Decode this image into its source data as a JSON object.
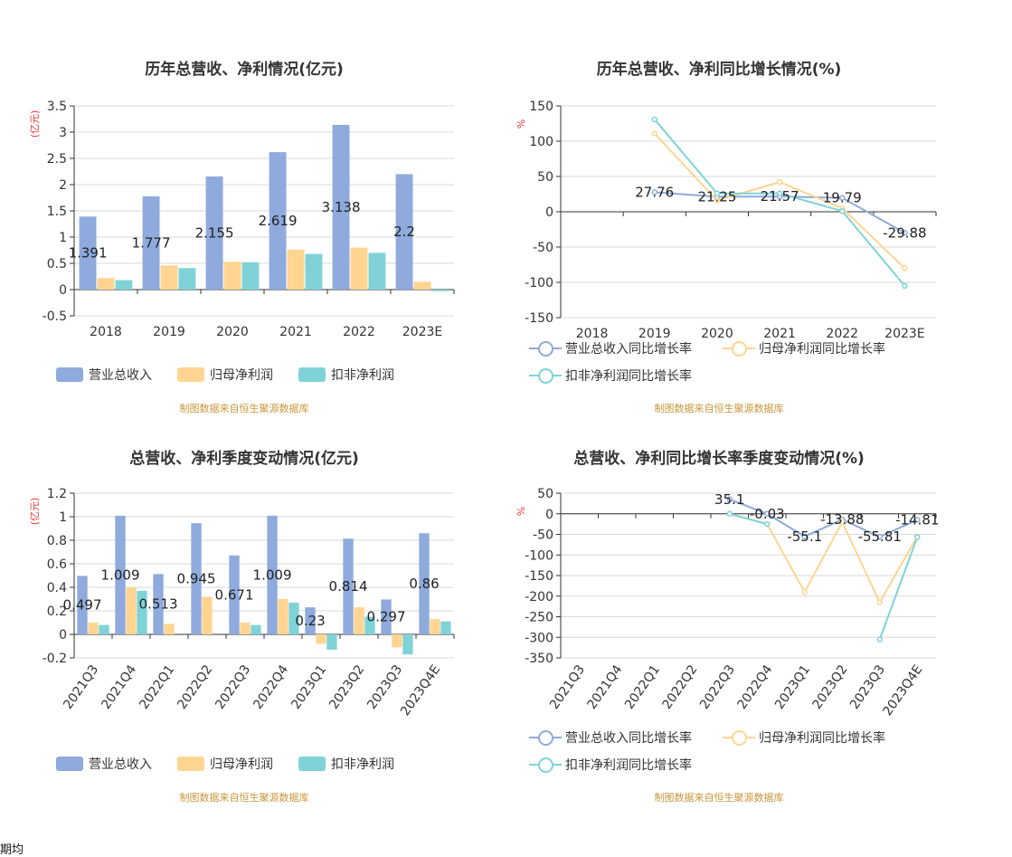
{
  "source_note": "制图数据来自恒生聚源数据库",
  "bottom_text": "期均",
  "colors": {
    "revenue": "#8faadc",
    "net": "#ffd591",
    "deduct": "#7fd3d7",
    "unit": "#e53935",
    "source": "#c8963a"
  },
  "chart_data": [
    {
      "type": "bar",
      "title": "历年总营收、净利情况(亿元)",
      "ylabel": "(亿元)",
      "ylim": [
        -0.5,
        3.5
      ],
      "yticks": [
        "3.5",
        "3",
        "2.5",
        "2",
        "1.5",
        "1",
        "0.5",
        "0",
        "-0.5"
      ],
      "ytick_values": [
        3.5,
        3,
        2.5,
        2,
        1.5,
        1,
        0.5,
        0,
        -0.5
      ],
      "categories": [
        "2018",
        "2019",
        "2020",
        "2021",
        "2022",
        "2023E"
      ],
      "series": [
        {
          "name": "营业总收入",
          "values": [
            1.391,
            1.777,
            2.155,
            2.619,
            3.138,
            2.2
          ]
        },
        {
          "name": "归母净利润",
          "values": [
            0.22,
            0.46,
            0.53,
            0.76,
            0.8,
            0.15
          ]
        },
        {
          "name": "扣非净利润",
          "values": [
            0.18,
            0.41,
            0.52,
            0.68,
            0.7,
            -0.03
          ]
        }
      ],
      "labels": [
        "1.391",
        "1.777",
        "2.155",
        "2.619",
        "3.138",
        "2.2"
      ],
      "legend": "bottom"
    },
    {
      "type": "line",
      "title": "历年总营收、净利同比增长情况(%)",
      "ylabel": "%",
      "ylim": [
        -150,
        150
      ],
      "yticks": [
        "150",
        "100",
        "50",
        "0",
        "-50",
        "-100",
        "-150"
      ],
      "ytick_values": [
        150,
        100,
        50,
        0,
        -50,
        -100,
        -150
      ],
      "categories": [
        "2018",
        "2019",
        "2020",
        "2021",
        "2022",
        "2023E"
      ],
      "series": [
        {
          "name": "营业总收入同比增长率",
          "values": [
            null,
            27.76,
            21.25,
            21.57,
            19.79,
            -29.88
          ]
        },
        {
          "name": "归母净利润同比增长率",
          "values": [
            null,
            111,
            16,
            42,
            5,
            -80
          ]
        },
        {
          "name": "扣非净利润同比增长率",
          "values": [
            null,
            131,
            26,
            26,
            1,
            -105
          ]
        }
      ],
      "labels": [
        null,
        "27.76",
        "21.25",
        "21.57",
        "19.79",
        "-29.88"
      ],
      "legend": "bottom"
    },
    {
      "type": "bar",
      "title": "总营收、净利季度变动情况(亿元)",
      "ylabel": "(亿元)",
      "ylim": [
        -0.2,
        1.2
      ],
      "yticks": [
        "1.2",
        "1",
        "0.8",
        "0.6",
        "0.4",
        "0.2",
        "0",
        "-0.2"
      ],
      "ytick_values": [
        1.2,
        1,
        0.8,
        0.6,
        0.4,
        0.2,
        0,
        -0.2
      ],
      "categories": [
        "2021Q3",
        "2021Q4",
        "2022Q1",
        "2022Q2",
        "2022Q3",
        "2022Q4",
        "2023Q1",
        "2023Q2",
        "2023Q3",
        "2023Q4E"
      ],
      "series": [
        {
          "name": "营业总收入",
          "values": [
            0.497,
            1.009,
            0.513,
            0.945,
            0.671,
            1.009,
            0.23,
            0.814,
            0.297,
            0.86
          ]
        },
        {
          "name": "归母净利润",
          "values": [
            0.1,
            0.4,
            0.09,
            0.32,
            0.1,
            0.3,
            -0.08,
            0.23,
            -0.11,
            0.13
          ]
        },
        {
          "name": "扣非净利润",
          "values": [
            0.08,
            0.37,
            null,
            null,
            0.08,
            0.27,
            -0.13,
            0.15,
            -0.17,
            0.11
          ]
        }
      ],
      "labels": [
        "0.497",
        "1.009",
        "0.513",
        "0.945",
        "0.671",
        "1.009",
        "0.23",
        "0.814",
        "0.297",
        "0.86"
      ],
      "legend": "bottom"
    },
    {
      "type": "line",
      "title": "总营收、净利同比增长率季度变动情况(%)",
      "ylabel": "%",
      "ylim": [
        -350,
        50
      ],
      "yticks": [
        "50",
        "0",
        "-50",
        "-100",
        "-150",
        "-200",
        "-250",
        "-300",
        "-350"
      ],
      "ytick_values": [
        50,
        0,
        -50,
        -100,
        -150,
        -200,
        -250,
        -300,
        -350
      ],
      "categories": [
        "2021Q3",
        "2021Q4",
        "2022Q1",
        "2022Q2",
        "2022Q3",
        "2022Q4",
        "2023Q1",
        "2023Q2",
        "2023Q3",
        "2023Q4E"
      ],
      "series": [
        {
          "name": "营业总收入同比增长率",
          "values": [
            null,
            null,
            null,
            null,
            35.1,
            -0.03,
            -55.1,
            -13.88,
            -55.81,
            -14.81
          ]
        },
        {
          "name": "归母净利润同比增长率",
          "values": [
            null,
            null,
            null,
            null,
            0,
            -25,
            -190,
            -20,
            -215,
            -55
          ]
        },
        {
          "name": "扣非净利润同比增长率",
          "values": [
            null,
            null,
            null,
            null,
            0,
            -25,
            null,
            null,
            -305,
            -57
          ]
        }
      ],
      "labels": [
        null,
        null,
        null,
        null,
        "35.1",
        "-0.03",
        "-55.1",
        "-13.88",
        "-55.81",
        "-14.81"
      ],
      "legend": "bottom"
    }
  ]
}
